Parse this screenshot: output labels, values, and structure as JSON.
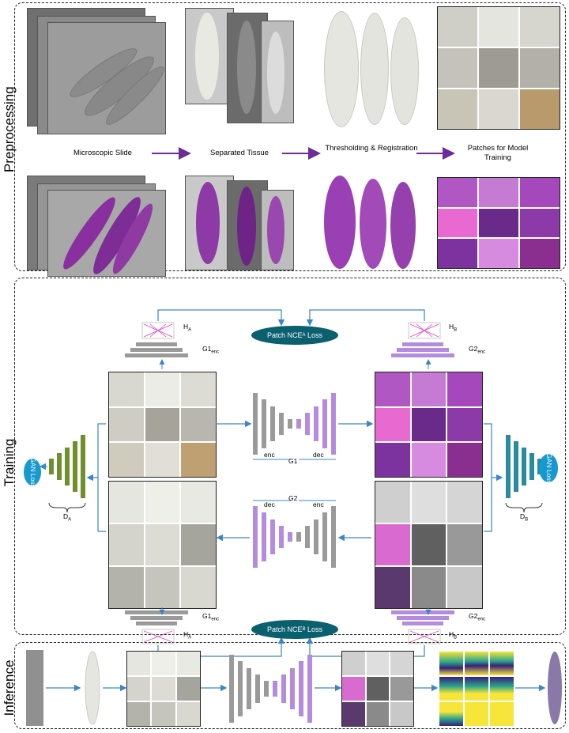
{
  "sections": {
    "preprocessing": "Preprocessing",
    "training": "Training",
    "inference": "Inference"
  },
  "preprocessing": {
    "step1": "Microscopic Slide",
    "step2": "Separated Tissue",
    "step3": "Thresholding & Registration",
    "step4": "Patches for Model Training"
  },
  "training": {
    "patch_nce_a": "Patch NCE",
    "patch_nce_a_sub": "A",
    "patch_nce_b": "Patch NCE",
    "patch_nce_b_sub": "B",
    "loss_word": " Loss",
    "ha": "H",
    "ha_sub": "A",
    "hb": "H",
    "hb_sub": "B",
    "g1enc": "G1",
    "g2enc": "G2",
    "enc_sub": "enc",
    "g1": "G1",
    "g2": "G2",
    "enc": "enc",
    "dec": "dec",
    "gan_left": "GAN Loss",
    "gan_right": "GAN Loss",
    "da": "D",
    "da_sub": "A",
    "db": "D",
    "db_sub": "B"
  },
  "colors": {
    "purple_arrow": "#6a2d9a",
    "blue_arrow": "#3a86c8",
    "gray_bar": "#9a9a9a",
    "lilac_bar": "#b58be0",
    "green_bar": "#6f8f2c",
    "teal_bar": "#2a8aa0",
    "he_stain": "#9b3fb5"
  }
}
